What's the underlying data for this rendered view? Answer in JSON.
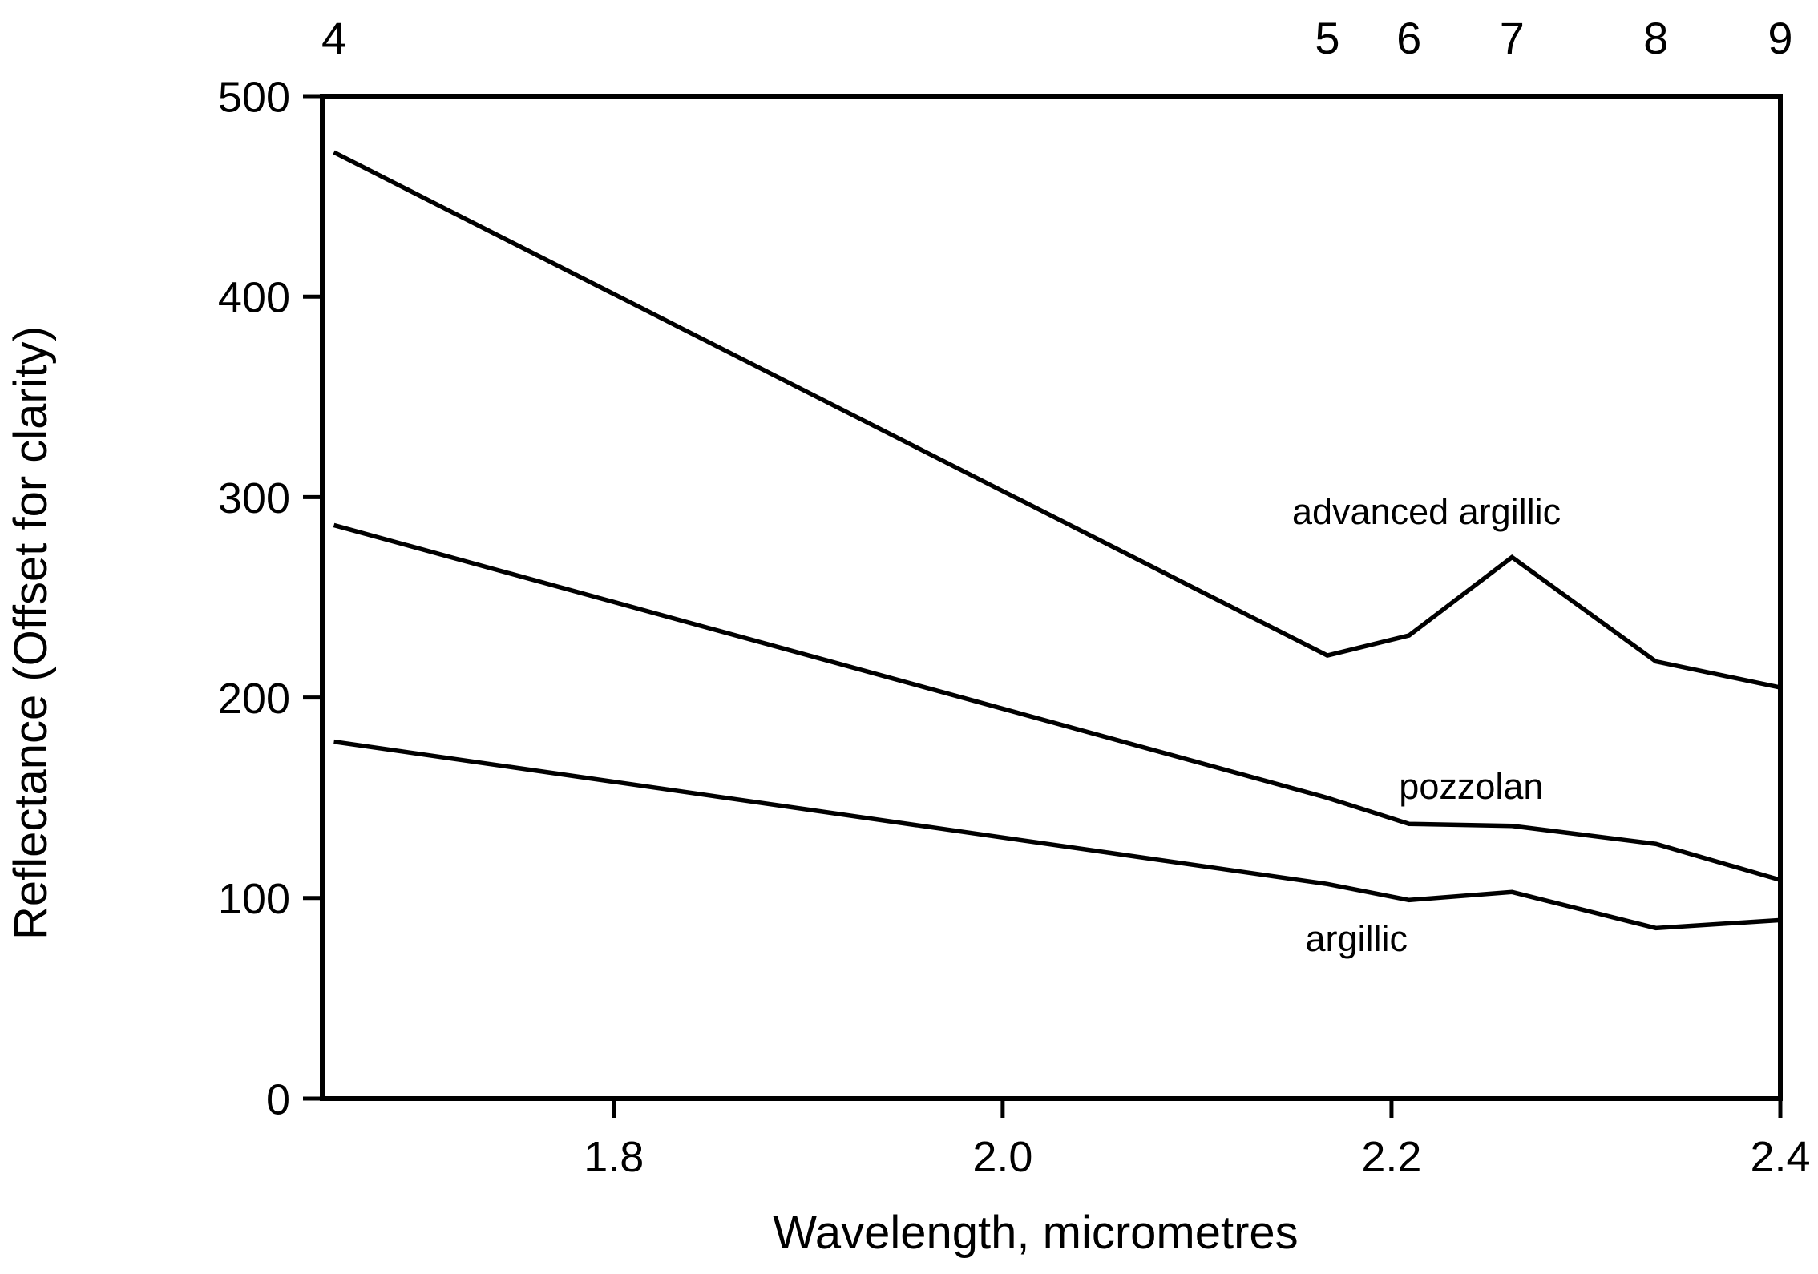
{
  "figure": {
    "background_color": "#ffffff",
    "foreground_color": "#000000"
  },
  "chart_data": {
    "type": "line",
    "title": "",
    "xlabel": "Wavelength, micrometres",
    "ylabel": "Reflectance (Offset for clarity)",
    "xlim": [
      1.65,
      2.4
    ],
    "ylim": [
      0,
      500
    ],
    "grid": false,
    "legend_position": "none",
    "x_tick_values": [
      1.8,
      2.0,
      2.2,
      2.4
    ],
    "x_tick_labels": [
      "1.8",
      "2.0",
      "2.2",
      "2.4"
    ],
    "y_tick_values": [
      0,
      100,
      200,
      300,
      400,
      500
    ],
    "y_tick_labels": [
      "0",
      "100",
      "200",
      "300",
      "400",
      "500"
    ],
    "top_axis_ticks": [
      {
        "label": "4",
        "x": 1.656
      },
      {
        "label": "5",
        "x": 2.167
      },
      {
        "label": "6",
        "x": 2.209
      },
      {
        "label": "7",
        "x": 2.262
      },
      {
        "label": "8",
        "x": 2.336
      },
      {
        "label": "9",
        "x": 2.4
      }
    ],
    "x": [
      1.656,
      2.167,
      2.209,
      2.262,
      2.336,
      2.4
    ],
    "series": [
      {
        "name": "advanced argillic",
        "values": [
          472,
          221,
          231,
          270,
          218,
          205
        ]
      },
      {
        "name": "pozzolan",
        "values": [
          286,
          150,
          137,
          136,
          127,
          109
        ]
      },
      {
        "name": "argillic",
        "values": [
          178,
          107,
          99,
          103,
          85,
          89
        ]
      }
    ],
    "annotations": [
      {
        "text": "advanced argillic",
        "x": 2.218,
        "y": 293
      },
      {
        "text": "pozzolan",
        "x": 2.241,
        "y": 156
      },
      {
        "text": "argillic",
        "x": 2.182,
        "y": 80
      }
    ]
  }
}
